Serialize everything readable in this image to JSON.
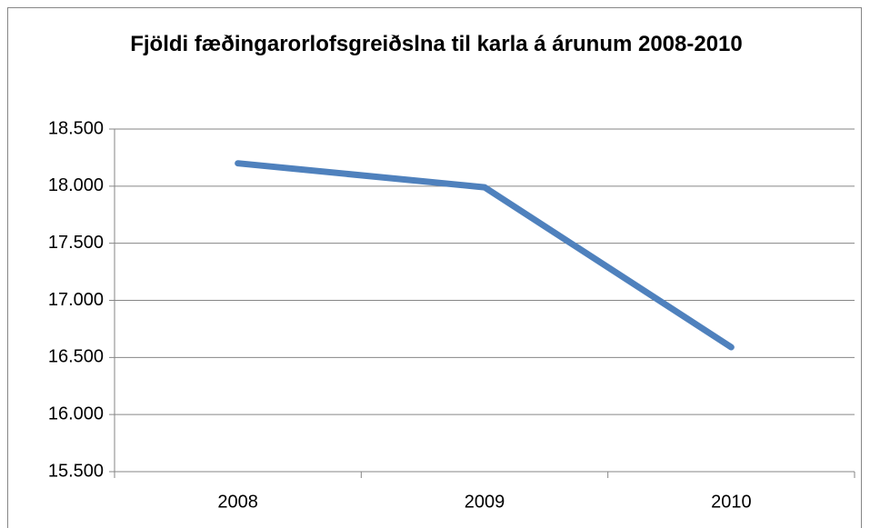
{
  "chart_data": {
    "type": "line",
    "title": "Fjöldi fæðingarorlofsgreiðslna til karla á árunum 2008-2010",
    "categories": [
      "2008",
      "2009",
      "2010"
    ],
    "values": [
      18200,
      17990,
      16590
    ],
    "color": "#4f81bd",
    "ylim": [
      15500,
      18500
    ],
    "yticks": [
      {
        "value": 15500,
        "label": "15.500"
      },
      {
        "value": 16000,
        "label": "16.000"
      },
      {
        "value": 16500,
        "label": "16.500"
      },
      {
        "value": 17000,
        "label": "17.000"
      },
      {
        "value": 17500,
        "label": "17.500"
      },
      {
        "value": 18000,
        "label": "18.000"
      },
      {
        "value": 18500,
        "label": "18.500"
      }
    ],
    "grid": true
  }
}
